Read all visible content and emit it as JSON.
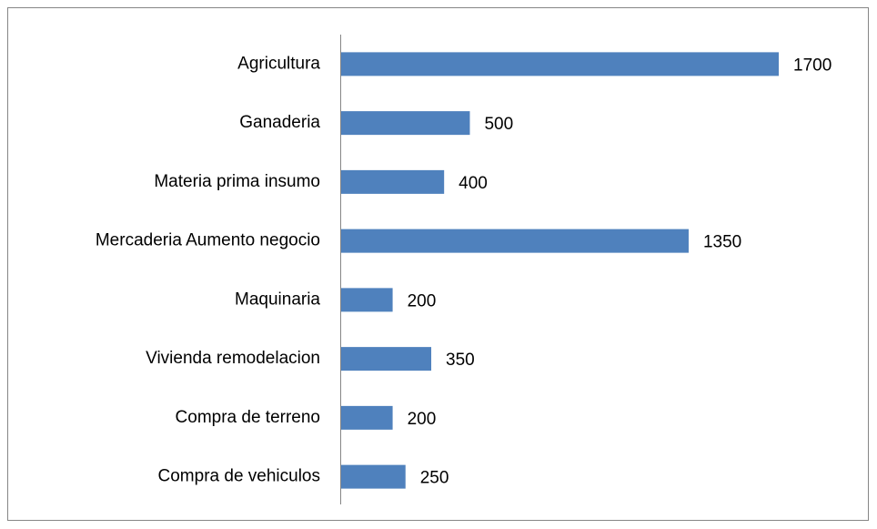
{
  "chart_data": {
    "type": "bar",
    "orientation": "horizontal",
    "categories": [
      "Agricultura",
      "Ganaderia",
      "Materia prima insumo",
      "Mercaderia Aumento negocio",
      "Maquinaria",
      "Vivienda remodelacion",
      "Compra de terreno",
      "Compra de vehiculos"
    ],
    "values": [
      1700,
      500,
      400,
      1350,
      200,
      350,
      200,
      250
    ],
    "color": "#4f81bd"
  }
}
